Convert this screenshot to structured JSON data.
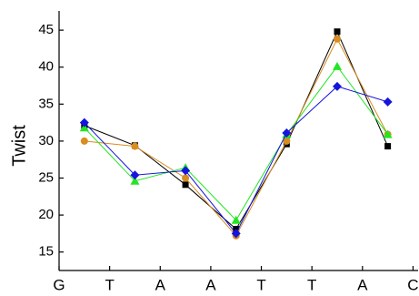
{
  "chart_data": {
    "type": "line",
    "y_label": "Twist",
    "x": [
      1,
      2,
      3,
      4,
      5,
      6,
      7
    ],
    "xlim": [
      0.5,
      7.6
    ],
    "xticks": [
      {
        "value": 0.5,
        "label": "G"
      },
      {
        "value": 1.5,
        "label": "T"
      },
      {
        "value": 2.5,
        "label": "A"
      },
      {
        "value": 3.5,
        "label": "A"
      },
      {
        "value": 4.5,
        "label": "T"
      },
      {
        "value": 5.5,
        "label": "T"
      },
      {
        "value": 6.5,
        "label": "A"
      },
      {
        "value": 7.5,
        "label": "C"
      }
    ],
    "ylim": [
      12.5,
      47.6
    ],
    "yticks": [
      15,
      20,
      25,
      30,
      35,
      40,
      45
    ],
    "series": [
      {
        "color": "#000000",
        "marker": "square",
        "values": [
          32.1,
          29.4,
          24.1,
          18.1,
          29.6,
          44.8,
          29.3
        ]
      },
      {
        "color": "#d98c1f",
        "marker": "circle",
        "values": [
          30.0,
          29.3,
          25.0,
          17.2,
          30.0,
          43.8,
          30.9
        ]
      },
      {
        "color": "#22e622",
        "marker": "triangle",
        "values": [
          31.8,
          24.6,
          26.4,
          19.3,
          30.9,
          40.1,
          30.9
        ]
      },
      {
        "color": "#1515dd",
        "marker": "diamond",
        "values": [
          32.5,
          25.4,
          26.0,
          17.5,
          31.1,
          37.4,
          35.3
        ]
      }
    ]
  }
}
